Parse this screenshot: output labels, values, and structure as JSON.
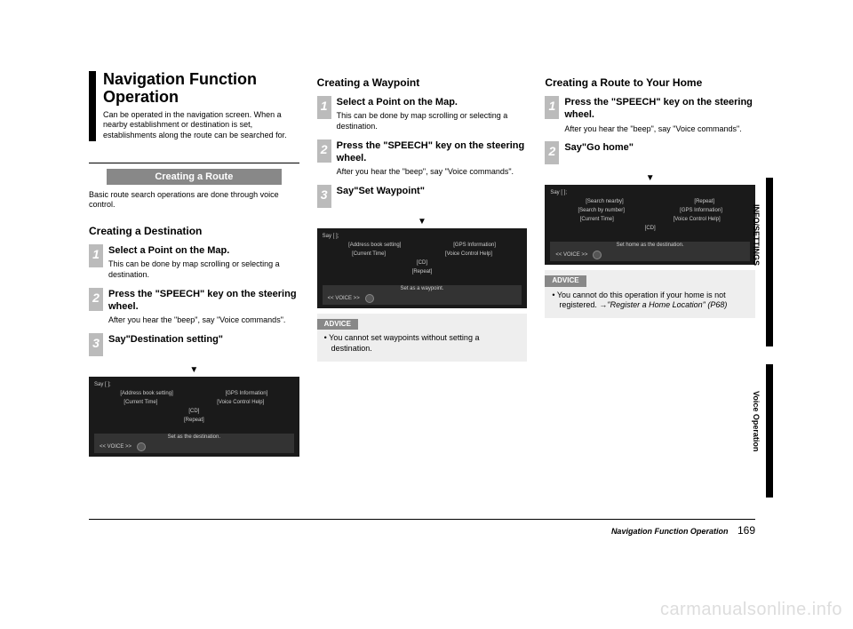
{
  "title": "Navigation Function Operation",
  "title_desc": "Can be operated in the navigation screen. When a nearby establishment or destination is set, establishments along the route can be searched for.",
  "section_banner": "Creating a Route",
  "banner_desc": "Basic route search operations are done through voice control.",
  "col1": {
    "subhead": "Creating a Destination",
    "steps": [
      {
        "n": "1",
        "title": "Select a Point on the Map.",
        "desc": "This can be done by map scrolling or selecting a destination."
      },
      {
        "n": "2",
        "title": "Press the \"SPEECH\" key on the steering wheel.",
        "desc": "After you hear the \"beep\", say \"Voice commands\"."
      },
      {
        "n": "3",
        "title": "Say\"Destination setting\"",
        "desc": ""
      }
    ],
    "shot": {
      "say": "Say [ ];",
      "r1a": "[Address book setting]",
      "r1b": "[GPS Information]",
      "r2a": "[Current Time]",
      "r2b": "[Voice Control Help]",
      "r3": "[CD]",
      "r4": "[Repeat]",
      "dest": "Set as the destination.",
      "voice": "<< VOICE >>"
    }
  },
  "col2": {
    "subhead": "Creating a Waypoint",
    "steps": [
      {
        "n": "1",
        "title": "Select a Point on the Map.",
        "desc": "This can be done by map scrolling or selecting a destination."
      },
      {
        "n": "2",
        "title": "Press the \"SPEECH\" key on the steering wheel.",
        "desc": "After you hear the \"beep\", say \"Voice commands\"."
      },
      {
        "n": "3",
        "title": "Say\"Set Waypoint\"",
        "desc": ""
      }
    ],
    "shot": {
      "say": "Say [ ];",
      "r1a": "[Address book setting]",
      "r1b": "[GPS Information]",
      "r2a": "[Current Time]",
      "r2b": "[Voice Control Help]",
      "r3": "[CD]",
      "r4": "[Repeat]",
      "dest": "Set as a waypoint.",
      "voice": "<< VOICE >>"
    },
    "advice_label": "ADVICE",
    "advice": "You cannot set waypoints without setting a destination."
  },
  "col3": {
    "subhead": "Creating a Route to Your Home",
    "steps": [
      {
        "n": "1",
        "title": "Press the \"SPEECH\" key on the steering wheel.",
        "desc": "After you hear the \"beep\", say \"Voice commands\"."
      },
      {
        "n": "2",
        "title": "Say\"Go home\"",
        "desc": ""
      }
    ],
    "shot": {
      "say": "Say [ ];",
      "r1a": "[Search nearby]",
      "r1b": "[Repeat]",
      "r2a": "[Search by number]",
      "r2b": "[GPS Information]",
      "r3a": "[Current Time]",
      "r3b": "[Voice Control Help]",
      "r4": "[CD]",
      "dest": "Set home as the destination.",
      "voice": "<< VOICE >>"
    },
    "advice_label": "ADVICE",
    "advice_pre": "You cannot do this operation if your home is not registered. →",
    "advice_ital": "\"Register a Home Location\" (P68)"
  },
  "side": {
    "tab1": "INFO/SETTINGS",
    "tab2": "Voice Operation"
  },
  "footer": {
    "title": "Navigation Function Operation",
    "page": "169"
  },
  "watermark": "carmanualsonline.info",
  "colors": {
    "banner_bg": "#888888",
    "step_bg": "#bbbbbb",
    "shot_bg": "#1a1a1a",
    "advice_bg": "#eeeeee"
  }
}
